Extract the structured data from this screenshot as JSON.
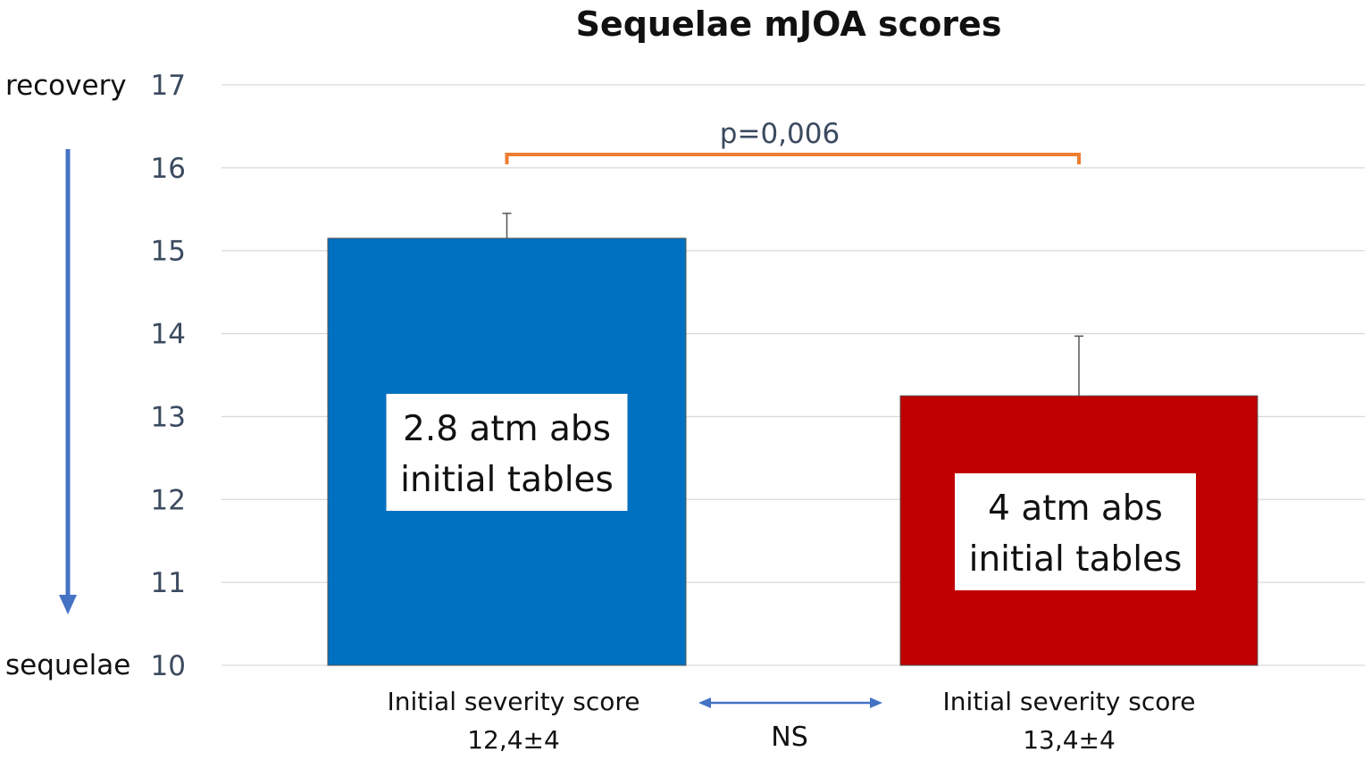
{
  "chart_data": {
    "type": "bar",
    "title": "Sequelae mJOA scores",
    "xlabel": "",
    "ylabel": "",
    "ylim": [
      10,
      17
    ],
    "yticks": [
      10,
      11,
      12,
      13,
      14,
      15,
      16,
      17
    ],
    "grid": true,
    "axis_labels": {
      "top": "recovery",
      "bottom": "sequelae"
    },
    "bars": [
      {
        "label_line1": "2.8 atm abs",
        "label_line2": "initial tables",
        "value": 15.15,
        "error": 0.3,
        "color": "#0070c0",
        "category_line1": "Initial severity score",
        "category_line2": "12,4±4"
      },
      {
        "label_line1": "4 atm abs",
        "label_line2": "initial tables",
        "value": 13.25,
        "error": 0.72,
        "color": "#c00000",
        "category_line1": "Initial severity score",
        "category_line2": "13,4±4"
      }
    ],
    "annotations": {
      "significance": "p=0,006",
      "significance_color": "#ed7d31",
      "between_categories": "NS",
      "arrow_color": "#4472c4"
    }
  }
}
